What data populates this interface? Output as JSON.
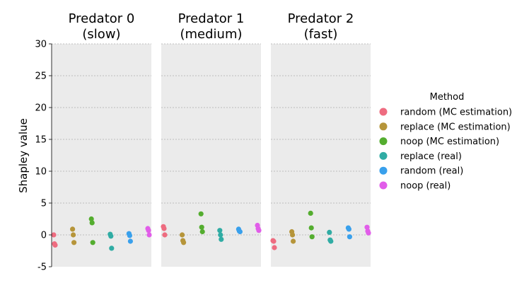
{
  "chart_data": {
    "type": "scatter",
    "ylabel": "Shapley value",
    "ylim": [
      -5,
      30
    ],
    "yticks": [
      -5,
      0,
      5,
      10,
      15,
      20,
      25,
      30
    ],
    "grid": "horizontal dashed",
    "legend": {
      "title": "Method",
      "placement": "right",
      "entries": [
        {
          "name": "random (MC estimation)",
          "color": "#ee6c80"
        },
        {
          "name": "replace (MC estimation)",
          "color": "#b6953a"
        },
        {
          "name": "noop (MC estimation)",
          "color": "#54ad2f"
        },
        {
          "name": "replace (real)",
          "color": "#30aca4"
        },
        {
          "name": "random (real)",
          "color": "#39a0ec"
        },
        {
          "name": "noop (real)",
          "color": "#e15de9"
        }
      ]
    },
    "panels": [
      {
        "title": [
          "Predator 0",
          "(slow)"
        ],
        "series": [
          {
            "values": [
              0.0,
              -1.4,
              -1.6
            ]
          },
          {
            "values": [
              0.9,
              0.0,
              -1.2
            ]
          },
          {
            "values": [
              2.5,
              1.9,
              -1.2
            ]
          },
          {
            "values": [
              0.1,
              -0.2,
              -2.1
            ]
          },
          {
            "values": [
              0.2,
              -0.1,
              -1.0
            ]
          },
          {
            "values": [
              1.0,
              0.7,
              0.0
            ]
          }
        ]
      },
      {
        "title": [
          "Predator 1",
          "(medium)"
        ],
        "series": [
          {
            "values": [
              1.3,
              1.0,
              0.0
            ]
          },
          {
            "values": [
              0.0,
              -0.9,
              -1.2
            ]
          },
          {
            "values": [
              3.3,
              1.2,
              0.5
            ]
          },
          {
            "values": [
              0.7,
              0.0,
              -0.7
            ]
          },
          {
            "values": [
              0.9,
              0.6,
              0.5
            ]
          },
          {
            "values": [
              1.5,
              1.0,
              0.7
            ]
          }
        ]
      },
      {
        "title": [
          "Predator 2",
          "(fast)"
        ],
        "series": [
          {
            "values": [
              -0.9,
              -1.0,
              -2.0
            ]
          },
          {
            "values": [
              0.5,
              0.0,
              -1.0
            ]
          },
          {
            "values": [
              3.4,
              1.1,
              -0.3
            ]
          },
          {
            "values": [
              0.4,
              -0.8,
              -1.0
            ]
          },
          {
            "values": [
              1.1,
              0.9,
              -0.3
            ]
          },
          {
            "values": [
              1.2,
              0.6,
              0.3
            ]
          }
        ]
      }
    ]
  }
}
